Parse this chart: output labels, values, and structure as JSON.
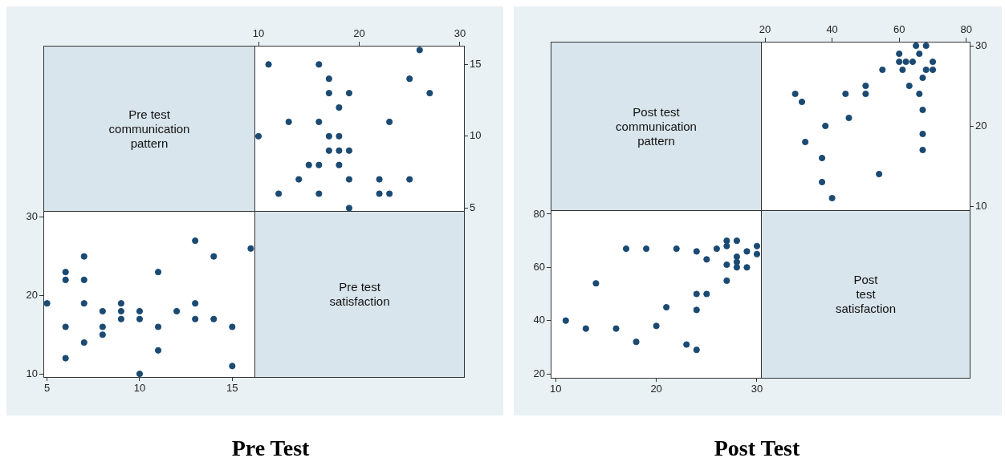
{
  "chart_data": [
    {
      "type": "other",
      "title": "Pre test\ncommunication\npattern",
      "annotations": [
        "Pre Test"
      ]
    },
    {
      "type": "scatter",
      "color": "#1b4a72",
      "marker": "circle",
      "grid": false,
      "legend": false,
      "xlim": [
        9.6,
        30.4
      ],
      "ylim": [
        4.8,
        16.3
      ],
      "xticks": [
        10,
        20,
        30
      ],
      "yticks": [
        5,
        10,
        15
      ],
      "x": [
        26,
        11,
        16,
        17,
        25,
        17,
        19,
        27,
        18,
        13,
        16,
        23,
        10,
        17,
        18,
        17,
        18,
        19,
        15,
        16,
        18,
        14,
        19,
        22,
        25,
        12,
        16,
        22,
        23,
        19
      ],
      "values": [
        16,
        15,
        15,
        14,
        14,
        13,
        13,
        13,
        12,
        11,
        11,
        11,
        10,
        10,
        10,
        9,
        9,
        9,
        8,
        8,
        8,
        7,
        7,
        7,
        7,
        6,
        6,
        6,
        6,
        5
      ]
    },
    {
      "type": "scatter",
      "color": "#1b4a72",
      "marker": "circle",
      "grid": false,
      "legend": false,
      "xlim": [
        4.8,
        16.2
      ],
      "ylim": [
        9.6,
        30.8
      ],
      "xticks": [
        5,
        10,
        15
      ],
      "yticks": [
        10,
        20,
        30
      ],
      "x": [
        5,
        6,
        6,
        6,
        6,
        7,
        7,
        7,
        7,
        8,
        8,
        8,
        9,
        9,
        9,
        10,
        10,
        10,
        11,
        11,
        11,
        12,
        13,
        13,
        13,
        14,
        14,
        15,
        15,
        16
      ],
      "values": [
        19,
        23,
        22,
        16,
        12,
        25,
        22,
        19,
        14,
        18,
        16,
        15,
        19,
        18,
        17,
        18,
        17,
        10,
        23,
        16,
        13,
        18,
        27,
        19,
        17,
        25,
        17,
        16,
        11,
        26
      ]
    },
    {
      "type": "other",
      "title": "Pre test\nsatisfaction"
    },
    {
      "type": "other",
      "title": "Post test\ncommunication\npattern",
      "annotations": [
        "Post Test"
      ]
    },
    {
      "type": "scatter",
      "color": "#1b4a72",
      "marker": "circle",
      "grid": false,
      "legend": false,
      "xlim": [
        18.8,
        81
      ],
      "ylim": [
        9.5,
        30.5
      ],
      "xticks": [
        20,
        40,
        60,
        80
      ],
      "yticks": [
        10,
        20,
        30
      ],
      "x": [
        65,
        68,
        60,
        66,
        60,
        62,
        64,
        70,
        55,
        61,
        68,
        70,
        67,
        50,
        63,
        29,
        44,
        50,
        66,
        31,
        67,
        45,
        38,
        67,
        32,
        67,
        37,
        54,
        37,
        40
      ],
      "values": [
        30,
        30,
        29,
        29,
        28,
        28,
        28,
        28,
        27,
        27,
        27,
        27,
        26,
        25,
        25,
        24,
        24,
        24,
        24,
        23,
        22,
        21,
        20,
        19,
        18,
        17,
        16,
        14,
        13,
        11
      ]
    },
    {
      "type": "scatter",
      "color": "#1b4a72",
      "marker": "circle",
      "grid": false,
      "legend": false,
      "xlim": [
        9.5,
        30.4
      ],
      "ylim": [
        18.5,
        81.5
      ],
      "xticks": [
        10,
        20,
        30
      ],
      "yticks": [
        20,
        40,
        60,
        80
      ],
      "x": [
        11,
        13,
        14,
        16,
        17,
        18,
        19,
        20,
        21,
        22,
        23,
        24,
        24,
        24,
        24,
        25,
        25,
        26,
        27,
        27,
        27,
        27,
        28,
        28,
        28,
        28,
        29,
        29,
        30,
        30
      ],
      "values": [
        40,
        37,
        54,
        37,
        67,
        32,
        67,
        38,
        45,
        67,
        31,
        66,
        50,
        44,
        29,
        63,
        50,
        67,
        70,
        68,
        61,
        55,
        70,
        64,
        62,
        60,
        66,
        60,
        68,
        65
      ]
    },
    {
      "type": "other",
      "title": "Post\ntest\nsatisfaction"
    }
  ]
}
